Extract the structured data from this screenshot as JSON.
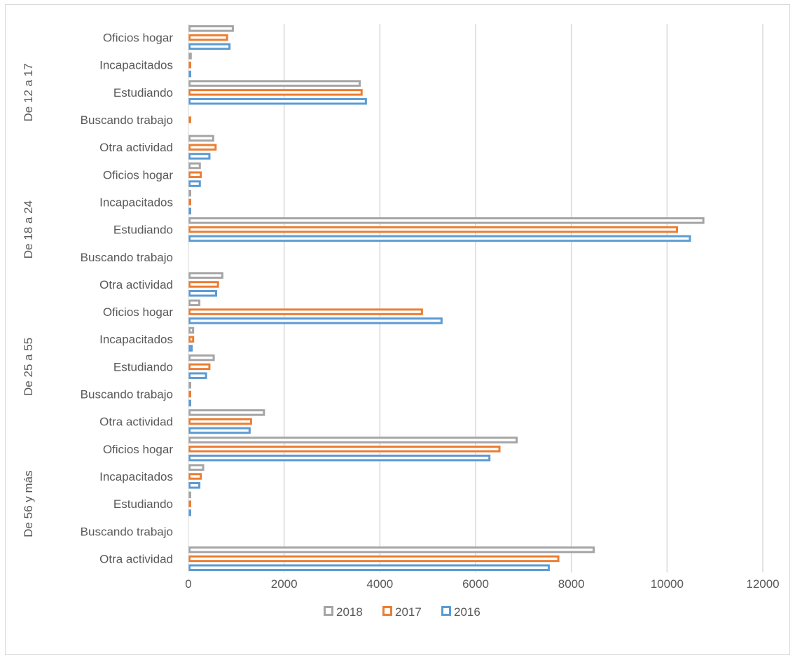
{
  "chart_data": {
    "type": "bar",
    "orientation": "horizontal",
    "x_ticks": [
      "0",
      "2000",
      "4000",
      "6000",
      "8000",
      "10000",
      "12000"
    ],
    "xlim": [
      0,
      12000
    ],
    "grid": "vertical",
    "legend_position": "bottom",
    "groups": [
      {
        "label": "De 12 a 17",
        "categories": [
          "Oficios hogar",
          "Incapacitados",
          "Estudiando",
          "Buscando trabajo",
          "Otra actividad"
        ],
        "series": [
          {
            "name": "2018",
            "values": [
              950,
              70,
              3600,
              0,
              540
            ]
          },
          {
            "name": "2017",
            "values": [
              830,
              50,
              3640,
              30,
              590
            ]
          },
          {
            "name": "2016",
            "values": [
              880,
              50,
              3730,
              0,
              460
            ]
          }
        ]
      },
      {
        "label": "De 18 a 24",
        "categories": [
          "Oficios hogar",
          "Incapacitados",
          "Estudiando",
          "Buscando trabajo",
          "Otra actividad"
        ],
        "series": [
          {
            "name": "2018",
            "values": [
              260,
              30,
              10780,
              0,
              730
            ]
          },
          {
            "name": "2017",
            "values": [
              280,
              30,
              10230,
              0,
              640
            ]
          },
          {
            "name": "2016",
            "values": [
              260,
              40,
              10500,
              0,
              600
            ]
          }
        ]
      },
      {
        "label": "De 25 a 55",
        "categories": [
          "Oficios hogar",
          "Incapacitados",
          "Estudiando",
          "Buscando trabajo",
          "Otra actividad"
        ],
        "series": [
          {
            "name": "2018",
            "values": [
              250,
              120,
              550,
              10,
              1600
            ]
          },
          {
            "name": "2017",
            "values": [
              4900,
              120,
              460,
              20,
              1330
            ]
          },
          {
            "name": "2016",
            "values": [
              5310,
              90,
              390,
              30,
              1300
            ]
          }
        ]
      },
      {
        "label": "De 56 y más",
        "categories": [
          "Oficios hogar",
          "Incapacitados",
          "Estudiando",
          "Buscando trabajo",
          "Otra actividad"
        ],
        "series": [
          {
            "name": "2018",
            "values": [
              6880,
              330,
              30,
              0,
              8490
            ]
          },
          {
            "name": "2017",
            "values": [
              6520,
              280,
              30,
              0,
              7750
            ]
          },
          {
            "name": "2016",
            "values": [
              6310,
              250,
              30,
              0,
              7550
            ]
          }
        ]
      }
    ],
    "legend": [
      {
        "name": "2018",
        "color": "#a5a5a5"
      },
      {
        "name": "2017",
        "color": "#ed7d31"
      },
      {
        "name": "2016",
        "color": "#5b9bd5"
      }
    ]
  }
}
